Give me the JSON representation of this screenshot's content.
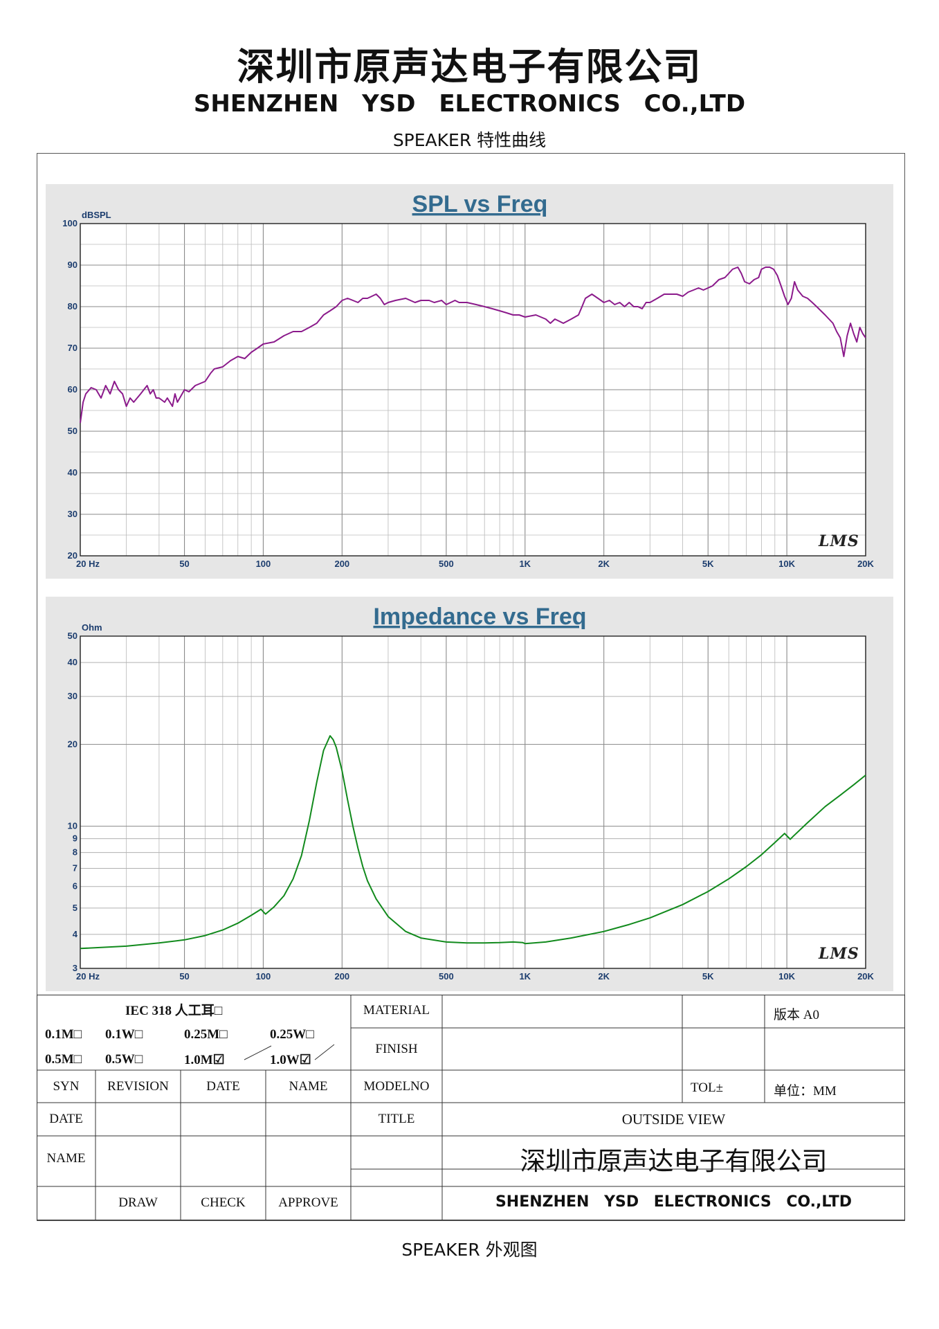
{
  "header": {
    "company_cn": "深圳市原声达电子有限公司",
    "company_en": "SHENZHEN YSD ELECTRONICS CO.,LTD",
    "subtitle": "SPEAKER 特性曲线"
  },
  "footer": {
    "caption": "SPEAKER 外观图"
  },
  "chart_data": [
    {
      "type": "line",
      "title": "SPL vs Freq",
      "ylabel": "dBSPL",
      "xscale": "log",
      "xlim": [
        20,
        20000
      ],
      "ylim": [
        20,
        100
      ],
      "grid": true,
      "watermark": "LMS",
      "line_color": "#8b1a8b",
      "x_ticks": [
        {
          "v": 20,
          "label": "20  Hz"
        },
        {
          "v": 50,
          "label": "50"
        },
        {
          "v": 100,
          "label": "100"
        },
        {
          "v": 200,
          "label": "200"
        },
        {
          "v": 500,
          "label": "500"
        },
        {
          "v": 1000,
          "label": "1K"
        },
        {
          "v": 2000,
          "label": "2K"
        },
        {
          "v": 5000,
          "label": "5K"
        },
        {
          "v": 10000,
          "label": "10K"
        },
        {
          "v": 20000,
          "label": "20K"
        }
      ],
      "y_ticks": [
        {
          "v": 100,
          "label": "100"
        },
        {
          "v": 90,
          "label": "90"
        },
        {
          "v": 80,
          "label": "80"
        },
        {
          "v": 70,
          "label": "70"
        },
        {
          "v": 60,
          "label": "60"
        },
        {
          "v": 50,
          "label": "50"
        },
        {
          "v": 40,
          "label": "40"
        },
        {
          "v": 30,
          "label": "30"
        },
        {
          "v": 20,
          "label": "20"
        }
      ],
      "points": [
        [
          20,
          52
        ],
        [
          20.5,
          57
        ],
        [
          21,
          59
        ],
        [
          22,
          60.5
        ],
        [
          23,
          60
        ],
        [
          24,
          58
        ],
        [
          25,
          61
        ],
        [
          26,
          59
        ],
        [
          27,
          62
        ],
        [
          28,
          60
        ],
        [
          29,
          59
        ],
        [
          30,
          56
        ],
        [
          31,
          58
        ],
        [
          32,
          57
        ],
        [
          34,
          59
        ],
        [
          36,
          61
        ],
        [
          37,
          59
        ],
        [
          38,
          60
        ],
        [
          39,
          58
        ],
        [
          40,
          58
        ],
        [
          42,
          57
        ],
        [
          43,
          58
        ],
        [
          45,
          56
        ],
        [
          46,
          59
        ],
        [
          47,
          57
        ],
        [
          49,
          59
        ],
        [
          50,
          60
        ],
        [
          52,
          59.5
        ],
        [
          55,
          61
        ],
        [
          60,
          62
        ],
        [
          63,
          64
        ],
        [
          65,
          65
        ],
        [
          70,
          65.5
        ],
        [
          75,
          67
        ],
        [
          80,
          68
        ],
        [
          85,
          67.5
        ],
        [
          90,
          69
        ],
        [
          95,
          70
        ],
        [
          100,
          71
        ],
        [
          110,
          71.5
        ],
        [
          120,
          73
        ],
        [
          130,
          74
        ],
        [
          140,
          74
        ],
        [
          150,
          75
        ],
        [
          160,
          76
        ],
        [
          170,
          78
        ],
        [
          180,
          79
        ],
        [
          190,
          80
        ],
        [
          200,
          81.5
        ],
        [
          210,
          82
        ],
        [
          220,
          81.5
        ],
        [
          230,
          81
        ],
        [
          240,
          82
        ],
        [
          250,
          82
        ],
        [
          260,
          82.5
        ],
        [
          270,
          83
        ],
        [
          280,
          82
        ],
        [
          290,
          80.5
        ],
        [
          300,
          81
        ],
        [
          320,
          81.5
        ],
        [
          350,
          82
        ],
        [
          380,
          81
        ],
        [
          400,
          81.5
        ],
        [
          430,
          81.5
        ],
        [
          450,
          81
        ],
        [
          480,
          81.5
        ],
        [
          500,
          80.5
        ],
        [
          520,
          81
        ],
        [
          540,
          81.5
        ],
        [
          560,
          81
        ],
        [
          600,
          81
        ],
        [
          650,
          80.5
        ],
        [
          700,
          80
        ],
        [
          750,
          79.5
        ],
        [
          800,
          79
        ],
        [
          850,
          78.5
        ],
        [
          900,
          78
        ],
        [
          950,
          78
        ],
        [
          1000,
          77.5
        ],
        [
          1100,
          78
        ],
        [
          1200,
          77
        ],
        [
          1250,
          76
        ],
        [
          1300,
          77
        ],
        [
          1350,
          76.5
        ],
        [
          1400,
          76
        ],
        [
          1500,
          77
        ],
        [
          1600,
          78
        ],
        [
          1650,
          80
        ],
        [
          1700,
          82
        ],
        [
          1800,
          83
        ],
        [
          1900,
          82
        ],
        [
          2000,
          81
        ],
        [
          2100,
          81.5
        ],
        [
          2200,
          80.5
        ],
        [
          2300,
          81
        ],
        [
          2400,
          80
        ],
        [
          2500,
          81
        ],
        [
          2600,
          80
        ],
        [
          2700,
          80
        ],
        [
          2800,
          79.5
        ],
        [
          2900,
          81
        ],
        [
          3000,
          81
        ],
        [
          3200,
          82
        ],
        [
          3400,
          83
        ],
        [
          3600,
          83
        ],
        [
          3800,
          83
        ],
        [
          4000,
          82.5
        ],
        [
          4200,
          83.5
        ],
        [
          4400,
          84
        ],
        [
          4600,
          84.5
        ],
        [
          4800,
          84
        ],
        [
          5000,
          84.5
        ],
        [
          5200,
          85
        ],
        [
          5500,
          86.5
        ],
        [
          5800,
          87
        ],
        [
          6000,
          88
        ],
        [
          6200,
          89
        ],
        [
          6500,
          89.5
        ],
        [
          6700,
          88
        ],
        [
          6900,
          86
        ],
        [
          7200,
          85.5
        ],
        [
          7500,
          86.5
        ],
        [
          7800,
          87
        ],
        [
          8000,
          89
        ],
        [
          8300,
          89.5
        ],
        [
          8600,
          89.5
        ],
        [
          8900,
          89
        ],
        [
          9200,
          87.5
        ],
        [
          9500,
          85
        ],
        [
          9800,
          82.5
        ],
        [
          10100,
          80.5
        ],
        [
          10400,
          82
        ],
        [
          10700,
          86
        ],
        [
          11000,
          84
        ],
        [
          11500,
          82.5
        ],
        [
          12000,
          82
        ],
        [
          12500,
          81
        ],
        [
          13000,
          80
        ],
        [
          14000,
          78
        ],
        [
          15000,
          76
        ],
        [
          15500,
          74
        ],
        [
          16000,
          72.5
        ],
        [
          16500,
          68
        ],
        [
          17000,
          73
        ],
        [
          17500,
          76
        ],
        [
          18000,
          73.5
        ],
        [
          18500,
          71.5
        ],
        [
          19000,
          75
        ],
        [
          19500,
          73.5
        ],
        [
          20000,
          72.5
        ]
      ]
    },
    {
      "type": "line",
      "title": "Impedance vs Freq",
      "ylabel": "Ohm",
      "xscale": "log",
      "yscale": "log",
      "xlim": [
        20,
        20000
      ],
      "ylim": [
        3,
        50
      ],
      "grid": true,
      "watermark": "LMS",
      "line_color": "#118a1c",
      "x_ticks": [
        {
          "v": 20,
          "label": "20  Hz"
        },
        {
          "v": 50,
          "label": "50"
        },
        {
          "v": 100,
          "label": "100"
        },
        {
          "v": 200,
          "label": "200"
        },
        {
          "v": 500,
          "label": "500"
        },
        {
          "v": 1000,
          "label": "1K"
        },
        {
          "v": 2000,
          "label": "2K"
        },
        {
          "v": 5000,
          "label": "5K"
        },
        {
          "v": 10000,
          "label": "10K"
        },
        {
          "v": 20000,
          "label": "20K"
        }
      ],
      "y_ticks": [
        {
          "v": 50,
          "label": "50"
        },
        {
          "v": 40,
          "label": "40"
        },
        {
          "v": 30,
          "label": "30"
        },
        {
          "v": 20,
          "label": "20"
        },
        {
          "v": 10,
          "label": "10"
        },
        {
          "v": 9,
          "label": "9"
        },
        {
          "v": 8,
          "label": "8"
        },
        {
          "v": 7,
          "label": "7"
        },
        {
          "v": 6,
          "label": "6"
        },
        {
          "v": 5,
          "label": "5"
        },
        {
          "v": 4,
          "label": "4"
        },
        {
          "v": 3,
          "label": "3"
        }
      ],
      "points": [
        [
          20,
          3.55
        ],
        [
          30,
          3.62
        ],
        [
          40,
          3.72
        ],
        [
          50,
          3.82
        ],
        [
          60,
          3.96
        ],
        [
          70,
          4.15
        ],
        [
          80,
          4.4
        ],
        [
          90,
          4.7
        ],
        [
          98,
          4.95
        ],
        [
          102,
          4.75
        ],
        [
          110,
          5.05
        ],
        [
          120,
          5.55
        ],
        [
          130,
          6.4
        ],
        [
          140,
          7.8
        ],
        [
          150,
          10.5
        ],
        [
          160,
          14.5
        ],
        [
          170,
          19
        ],
        [
          180,
          21.5
        ],
        [
          185,
          20.8
        ],
        [
          190,
          19.5
        ],
        [
          200,
          16
        ],
        [
          210,
          12.5
        ],
        [
          220,
          10
        ],
        [
          230,
          8.3
        ],
        [
          240,
          7.1
        ],
        [
          250,
          6.3
        ],
        [
          270,
          5.4
        ],
        [
          300,
          4.65
        ],
        [
          350,
          4.1
        ],
        [
          400,
          3.88
        ],
        [
          500,
          3.75
        ],
        [
          600,
          3.72
        ],
        [
          700,
          3.72
        ],
        [
          800,
          3.73
        ],
        [
          900,
          3.75
        ],
        [
          980,
          3.73
        ],
        [
          1000,
          3.7
        ],
        [
          1200,
          3.75
        ],
        [
          1500,
          3.88
        ],
        [
          2000,
          4.1
        ],
        [
          2500,
          4.35
        ],
        [
          3000,
          4.6
        ],
        [
          4000,
          5.15
        ],
        [
          5000,
          5.75
        ],
        [
          6000,
          6.4
        ],
        [
          7000,
          7.1
        ],
        [
          8000,
          7.85
        ],
        [
          9000,
          8.7
        ],
        [
          9800,
          9.4
        ],
        [
          10300,
          8.95
        ],
        [
          10600,
          9.2
        ],
        [
          12000,
          10.3
        ],
        [
          14000,
          11.8
        ],
        [
          16000,
          13
        ],
        [
          18000,
          14.2
        ],
        [
          20000,
          15.4
        ]
      ]
    }
  ],
  "title_block": {
    "iec": "IEC 318  人工耳□",
    "opt_01m": "0.1M□",
    "opt_01w": "0.1W□",
    "opt_025m": "0.25M□",
    "opt_025w": "0.25W□",
    "opt_05m": "0.5M□",
    "opt_05w": "0.5W□",
    "opt_10m": "1.0M☑",
    "opt_10w": "1.0W☑",
    "material": "MATERIAL",
    "finish": "FINISH",
    "version": "版本 A0",
    "syn": "SYN",
    "revision": "REVISION",
    "date": "DATE",
    "name": "NAME",
    "modelno": "MODELNO",
    "tol": "TOL±",
    "unit": "单位：MM",
    "date_row": "DATE",
    "title_label": "TITLE",
    "title_value": "OUTSIDE VIEW",
    "name_row": "NAME",
    "company_cn": "深圳市原声达电子有限公司",
    "draw": "DRAW",
    "check": "CHECK",
    "approve": "APPROVE",
    "company_en": "SHENZHEN YSD ELECTRONICS CO.,LTD"
  }
}
